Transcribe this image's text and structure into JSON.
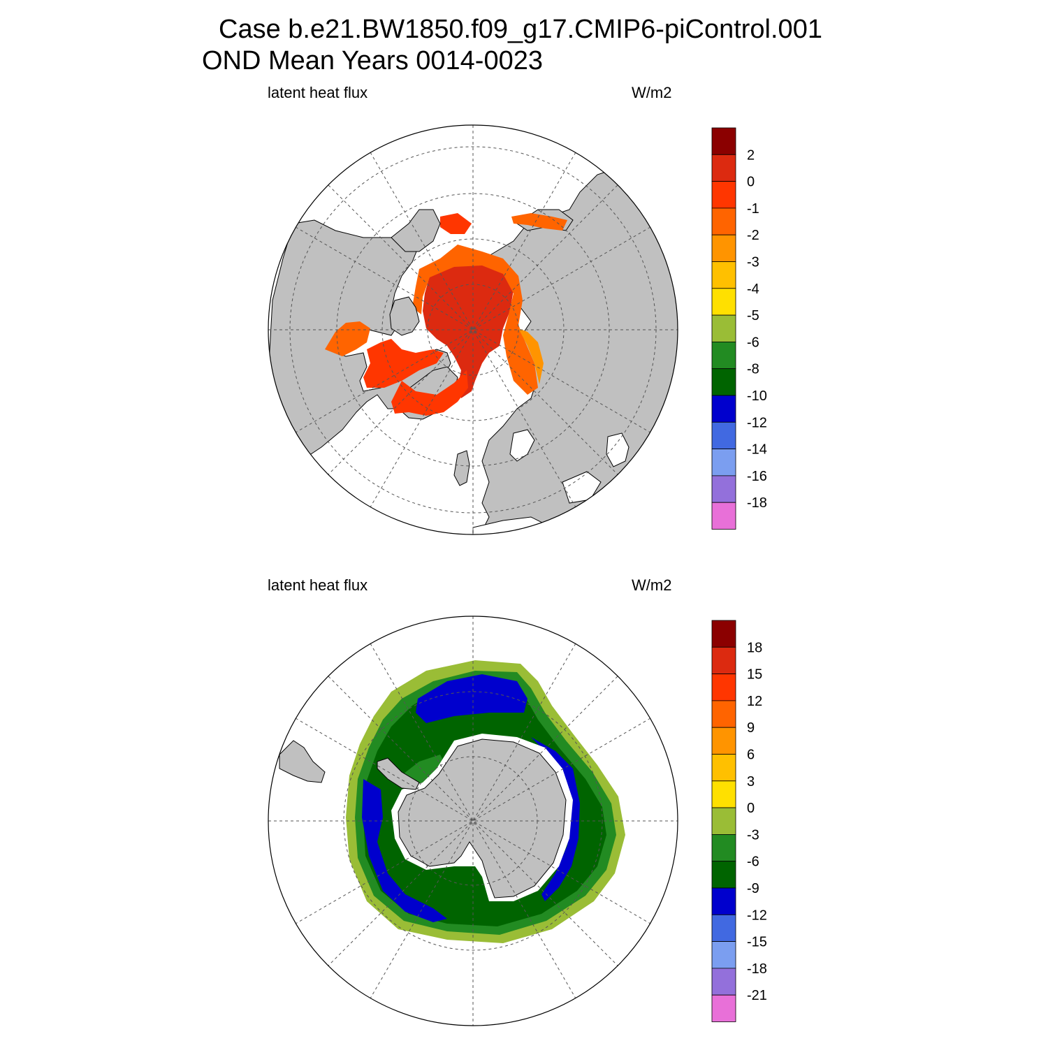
{
  "title": {
    "line1": "Case b.e21.BW1850.f09_g17.CMIP6-piControl.001",
    "line2": "OND Mean   Years 0014-0023"
  },
  "panels": [
    {
      "id": "north",
      "hemisphere": "Northern",
      "left_label": "latent heat flux",
      "right_label": "W/m2",
      "colorbar": {
        "colors": [
          "#e870d8",
          "#9370db",
          "#7b9ef0",
          "#4169e1",
          "#0000cd",
          "#006400",
          "#228b22",
          "#9abd36",
          "#ffe000",
          "#ffc000",
          "#ff9400",
          "#ff6400",
          "#ff3600",
          "#dc2a10",
          "#8b0000"
        ],
        "labels": [
          "-18",
          "-16",
          "-14",
          "-12",
          "-10",
          "-8",
          "-6",
          "-5",
          "-4",
          "-3",
          "-2",
          "-1",
          "0",
          "2"
        ]
      }
    },
    {
      "id": "south",
      "hemisphere": "Southern",
      "left_label": "latent heat flux",
      "right_label": "W/m2",
      "colorbar": {
        "colors": [
          "#e870d8",
          "#9370db",
          "#7b9ef0",
          "#4169e1",
          "#0000cd",
          "#006400",
          "#228b22",
          "#9abd36",
          "#ffe000",
          "#ffc000",
          "#ff9400",
          "#ff6400",
          "#ff3600",
          "#dc2a10",
          "#8b0000"
        ],
        "labels": [
          "-21",
          "-18",
          "-15",
          "-12",
          "-9",
          "-6",
          "-3",
          "0",
          "3",
          "6",
          "9",
          "12",
          "15",
          "18"
        ]
      }
    }
  ],
  "colors": {
    "land": "#c0c0c0",
    "ocean": "#ffffff",
    "grid": "#555555"
  }
}
